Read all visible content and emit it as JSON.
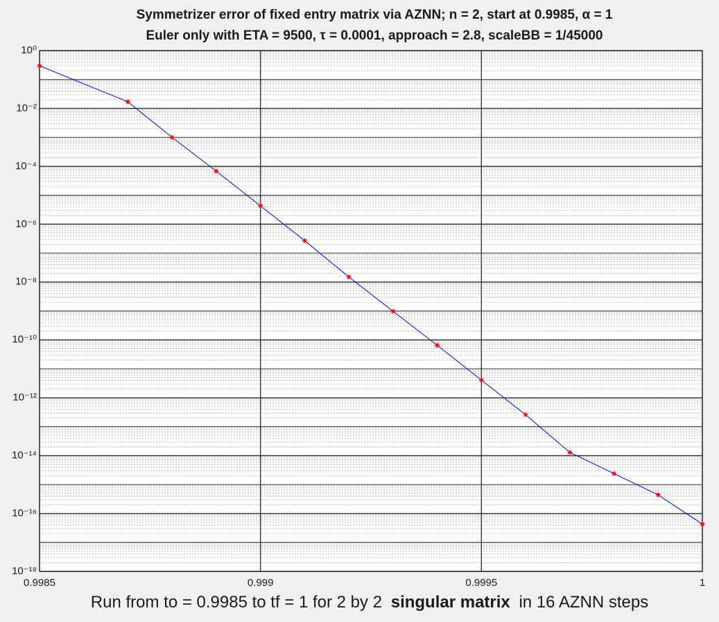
{
  "chart_data": {
    "type": "line",
    "title": [
      "Symmetrizer error of fixed entry matrix via AZNN;  n = 2,  start at 0.9985,  α = 1",
      "Euler only with   ETA = 9500,  τ = 0.0001,  approach = 2.8,  scaleBB = 1/45000"
    ],
    "xlabel": [
      "Run from to = 0.9985 to tf = 1 for 2 by 2",
      "singular matrix",
      "in 16 AZNN steps"
    ],
    "x": [
      0.9985,
      0.9987,
      0.9988,
      0.9989,
      0.999,
      0.9991,
      0.9992,
      0.9993,
      0.9994,
      0.9995,
      0.9996,
      0.9997,
      0.9998,
      0.9999,
      1
    ],
    "series": [
      {
        "color": "#0000ff",
        "marker_color": "#ff0000",
        "values": [
          0.3,
          0.017,
          0.001,
          6.8e-05,
          4.3e-06,
          2.7e-07,
          1.5e-08,
          9.8e-10,
          6.5e-11,
          4.1e-12,
          2.6e-13,
          1.3e-14,
          2.4e-15,
          4.4e-16,
          4.3e-17
        ]
      }
    ],
    "xlim": [
      0.9985,
      1
    ],
    "xticks": [
      0.9985,
      0.999,
      0.9995,
      1
    ],
    "ylim": [
      1e-18,
      1
    ],
    "yscale": "log",
    "yticks": [
      {
        "value": 1,
        "label": "10⁰"
      },
      {
        "value": 0.01,
        "label": "10⁻²"
      },
      {
        "value": 0.0001,
        "label": "10⁻⁴"
      },
      {
        "value": 1e-06,
        "label": "10⁻⁶"
      },
      {
        "value": 1e-08,
        "label": "10⁻⁸"
      },
      {
        "value": 1e-10,
        "label": "10⁻¹⁰"
      },
      {
        "value": 1e-12,
        "label": "10⁻¹²"
      },
      {
        "value": 1e-14,
        "label": "10⁻¹⁴"
      },
      {
        "value": 1e-16,
        "label": "10⁻¹⁶"
      },
      {
        "value": 1e-18,
        "label": "10⁻¹⁸"
      }
    ],
    "grid": true,
    "minor_grid": true
  }
}
